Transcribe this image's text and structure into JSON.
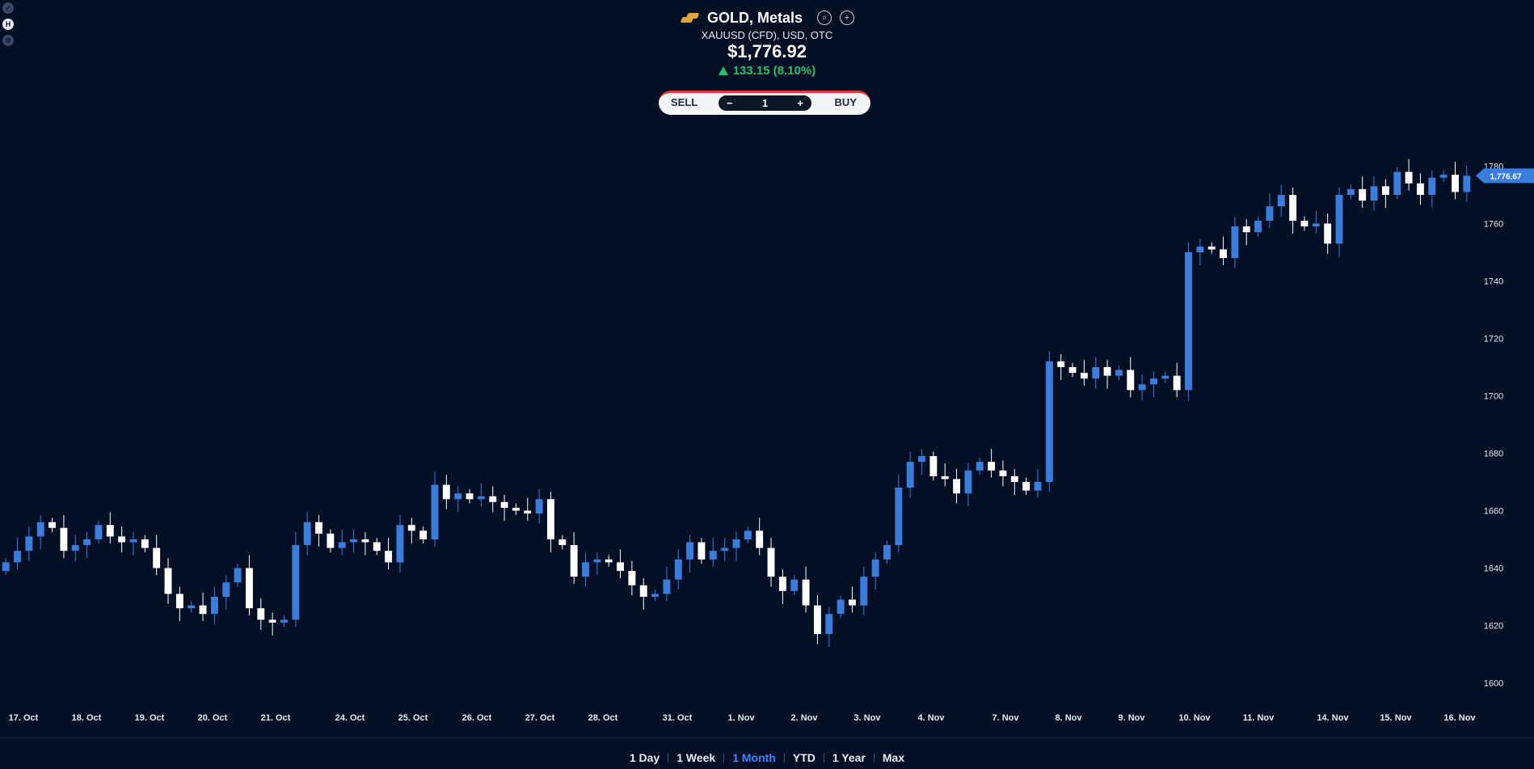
{
  "app": {
    "symbol_title": "GOLD, Metals",
    "subtitle": "XAUUSD (CFD), USD, OTC",
    "price": "$1,776.92",
    "change": "133.15 (8.10%)"
  },
  "trade": {
    "sell_label": "SELL",
    "buy_label": "BUY",
    "quantity": "1",
    "minus": "−",
    "plus": "+"
  },
  "header_icons": [
    "search-icon",
    "add-icon"
  ],
  "side_icons": [
    "check-icon",
    "h-icon",
    "settings-icon"
  ],
  "ranges": [
    "1 Day",
    "1 Week",
    "1 Month",
    "YTD",
    "1 Year",
    "Max"
  ],
  "active_range": "1 Month",
  "colors": {
    "background": "#020f24",
    "up": "#3b7ddd",
    "down": "#ffffff",
    "change_up": "#1ec26a",
    "accent": "#3d86ff",
    "sell": "#e5383b",
    "buy": "#22c55e"
  },
  "chart_data": {
    "type": "candlestick",
    "title": "",
    "xlabel": "",
    "ylabel": "",
    "ylim": [
      1590,
      1790
    ],
    "y_ticks": [
      1600,
      1620,
      1640,
      1660,
      1680,
      1700,
      1720,
      1740,
      1760,
      1780
    ],
    "x_labels": [
      "17. Oct",
      "18. Oct",
      "19. Oct",
      "20. Oct",
      "21. Oct",
      "24. Oct",
      "25. Oct",
      "26. Oct",
      "27. Oct",
      "28. Oct",
      "31. Oct",
      "1. Nov",
      "2. Nov",
      "3. Nov",
      "4. Nov",
      "7. Nov",
      "8. Nov",
      "9. Nov",
      "10. Nov",
      "11. Nov",
      "14. Nov",
      "15. Nov",
      "16. Nov"
    ],
    "last_price_label": "1,776.67",
    "last_price": 1776.67,
    "closes": [
      1642,
      1646,
      1651,
      1656,
      1654,
      1646,
      1648,
      1650,
      1655,
      1651,
      1649,
      1650,
      1647,
      1640,
      1631,
      1626,
      1627,
      1624,
      1630,
      1635,
      1640,
      1626,
      1622,
      1621,
      1622,
      1648,
      1656,
      1652,
      1647,
      1649,
      1650,
      1649,
      1646,
      1642,
      1655,
      1653,
      1650,
      1669,
      1664,
      1666,
      1664,
      1665,
      1663,
      1661,
      1660,
      1659,
      1664,
      1650,
      1648,
      1637,
      1642,
      1643,
      1642,
      1639,
      1634,
      1630,
      1631,
      1636,
      1643,
      1649,
      1643,
      1646,
      1647,
      1650,
      1653,
      1647,
      1637,
      1632,
      1636,
      1627,
      1617,
      1624,
      1629,
      1627,
      1637,
      1643,
      1648,
      1668,
      1677,
      1679,
      1672,
      1671,
      1666,
      1674,
      1677,
      1674,
      1672,
      1670,
      1667,
      1670,
      1712,
      1710,
      1708,
      1706,
      1710,
      1707,
      1709,
      1702,
      1704,
      1706,
      1707,
      1702,
      1750,
      1752,
      1751,
      1748,
      1759,
      1757,
      1761,
      1766,
      1770,
      1761,
      1759,
      1760,
      1753,
      1770,
      1772,
      1768,
      1773,
      1770,
      1778,
      1774,
      1770,
      1776,
      1777,
      1771,
      1776.67
    ]
  }
}
